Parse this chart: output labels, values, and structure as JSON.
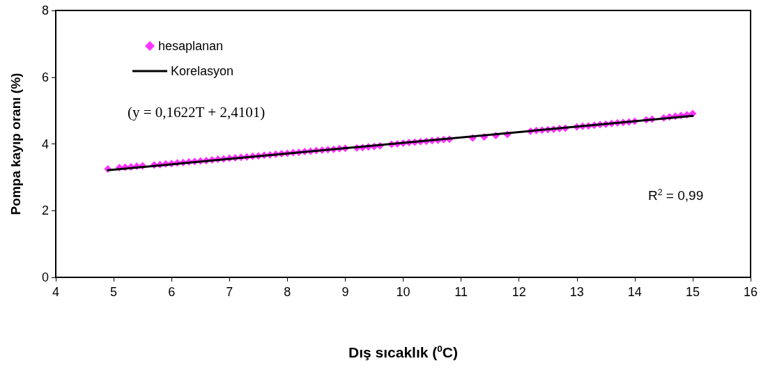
{
  "chart_data": {
    "type": "scatter",
    "xlabel": "Dış sıcaklık ($^{0}$C)",
    "ylabel": "Pompa kayıp oranı (%)",
    "xlim": [
      4,
      16
    ],
    "xticks": [
      4,
      5,
      6,
      7,
      8,
      9,
      10,
      11,
      12,
      13,
      14,
      15,
      16
    ],
    "ylim": [
      0,
      8
    ],
    "yticks": [
      0,
      2,
      4,
      6,
      8
    ],
    "grid": false,
    "legend": "top left",
    "marker": "diamond",
    "annotations": [
      "(y = 0,1622T + 2,4101)",
      "R$^{2}$ = 0,99"
    ],
    "series": [
      {
        "name": "hesaplanan",
        "color": "#ff00ff",
        "x": [
          4.9,
          5.1,
          5.2,
          5.3,
          5.4,
          5.5,
          5.7,
          5.8,
          5.9,
          6.0,
          6.1,
          6.2,
          6.3,
          6.4,
          6.5,
          6.6,
          6.7,
          6.8,
          6.9,
          7.0,
          7.1,
          7.2,
          7.3,
          7.4,
          7.5,
          7.6,
          7.7,
          7.8,
          7.9,
          8.0,
          8.1,
          8.2,
          8.3,
          8.4,
          8.5,
          8.6,
          8.7,
          8.8,
          8.9,
          9.0,
          9.2,
          9.3,
          9.4,
          9.5,
          9.6,
          9.8,
          9.9,
          10.0,
          10.1,
          10.2,
          10.3,
          10.4,
          10.5,
          10.6,
          10.7,
          10.8,
          11.2,
          11.4,
          11.6,
          11.8,
          12.2,
          12.3,
          12.4,
          12.5,
          12.6,
          12.7,
          12.8,
          13.0,
          13.1,
          13.2,
          13.3,
          13.4,
          13.5,
          13.6,
          13.7,
          13.8,
          13.9,
          14.0,
          14.2,
          14.3,
          14.5,
          14.6,
          14.7,
          14.8,
          14.9,
          15.0
        ],
        "values": [
          3.25,
          3.29,
          3.3,
          3.31,
          3.33,
          3.34,
          3.37,
          3.38,
          3.4,
          3.41,
          3.43,
          3.44,
          3.46,
          3.47,
          3.49,
          3.5,
          3.52,
          3.54,
          3.55,
          3.57,
          3.58,
          3.6,
          3.61,
          3.63,
          3.64,
          3.66,
          3.67,
          3.69,
          3.71,
          3.72,
          3.74,
          3.75,
          3.77,
          3.78,
          3.8,
          3.81,
          3.83,
          3.84,
          3.86,
          3.87,
          3.88,
          3.89,
          3.91,
          3.92,
          3.94,
          3.99,
          4.0,
          4.02,
          4.04,
          4.05,
          4.07,
          4.08,
          4.1,
          4.11,
          4.13,
          4.14,
          4.18,
          4.21,
          4.25,
          4.28,
          4.38,
          4.4,
          4.41,
          4.43,
          4.44,
          4.46,
          4.47,
          4.51,
          4.53,
          4.54,
          4.56,
          4.58,
          4.59,
          4.61,
          4.63,
          4.64,
          4.66,
          4.68,
          4.72,
          4.74,
          4.78,
          4.81,
          4.83,
          4.85,
          4.87,
          4.91
        ]
      },
      {
        "name": "Korelasyon",
        "type": "line",
        "color": "#000000",
        "marker": "none",
        "line_style": "solid",
        "x": [
          4.9,
          15
        ],
        "values": [
          3.21,
          4.84
        ]
      }
    ]
  }
}
